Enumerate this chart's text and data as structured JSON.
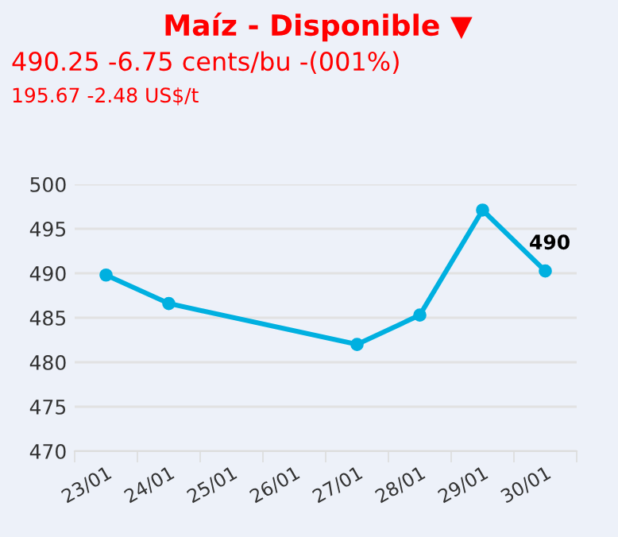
{
  "chart_data": {
    "type": "line",
    "title": "Maíz - Disponible ▼",
    "annotations": [
      "490.25 -6.75 cents/bu -(001%)",
      "195.67 -2.48 US$/t"
    ],
    "categories": [
      "23/01",
      "24/01",
      "25/01",
      "26/01",
      "27/01",
      "28/01",
      "29/01",
      "30/01"
    ],
    "series": [
      {
        "color": "#00b0e0",
        "values": [
          489.8,
          486.6,
          null,
          null,
          482.0,
          485.3,
          497.1,
          490.25
        ],
        "value_labels": [
          null,
          null,
          null,
          null,
          null,
          null,
          null,
          "490"
        ]
      }
    ],
    "ylim": [
      470,
      500
    ],
    "yticks": [
      470,
      475,
      480,
      485,
      490,
      495,
      500
    ],
    "grid": "y",
    "marker": "circle",
    "line_style": "solid"
  }
}
